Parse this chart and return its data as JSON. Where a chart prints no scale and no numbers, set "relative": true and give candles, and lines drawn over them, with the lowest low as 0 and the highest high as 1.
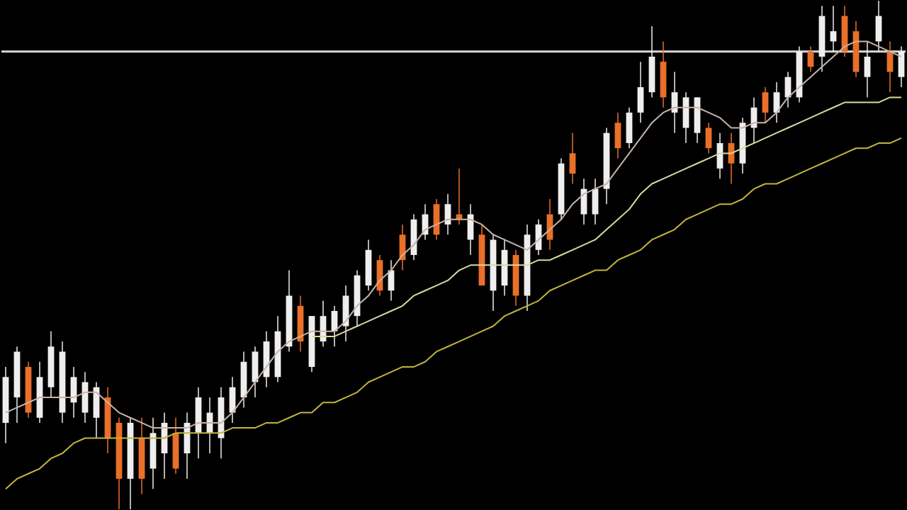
{
  "chart_data": {
    "type": "candlestick",
    "relative": true,
    "categories": [
      null,
      null,
      null,
      null,
      null,
      null,
      null,
      null,
      null,
      null,
      null,
      null,
      null,
      null,
      null,
      null,
      null,
      null,
      null,
      null,
      null,
      null,
      null,
      null,
      null,
      null,
      null,
      null,
      null,
      null,
      null,
      null,
      null,
      null,
      null,
      null,
      null,
      null,
      null,
      null,
      null,
      null,
      null,
      null,
      null,
      null,
      null,
      null,
      null,
      null,
      null,
      null,
      null,
      null,
      null,
      null,
      null,
      null,
      null,
      null,
      null,
      null,
      null,
      null,
      null,
      null,
      null,
      null,
      null,
      null,
      null,
      null,
      null,
      null,
      null,
      null,
      null,
      null,
      null,
      null
    ],
    "ohlc": [
      [
        0.17,
        0.28,
        0.13,
        0.26
      ],
      [
        0.22,
        0.32,
        0.17,
        0.31
      ],
      [
        0.28,
        0.29,
        0.18,
        0.19
      ],
      [
        0.18,
        0.29,
        0.17,
        0.26
      ],
      [
        0.24,
        0.35,
        0.22,
        0.32
      ],
      [
        0.19,
        0.33,
        0.17,
        0.31
      ],
      [
        0.21,
        0.28,
        0.18,
        0.26
      ],
      [
        0.19,
        0.27,
        0.17,
        0.25
      ],
      [
        0.18,
        0.25,
        0.14,
        0.24
      ],
      [
        0.22,
        0.24,
        0.11,
        0.14
      ],
      [
        0.17,
        0.18,
        0,
        0.06
      ],
      [
        0.06,
        0.18,
        0,
        0.17
      ],
      [
        0.14,
        0.18,
        0.03,
        0.06
      ],
      [
        0.08,
        0.18,
        0.04,
        0.15
      ],
      [
        0.11,
        0.19,
        0.06,
        0.17
      ],
      [
        0.15,
        0.18,
        0.07,
        0.08
      ],
      [
        0.11,
        0.19,
        0.06,
        0.17
      ],
      [
        0.15,
        0.24,
        0.1,
        0.22
      ],
      [
        0.15,
        0.22,
        0.11,
        0.19
      ],
      [
        0.14,
        0.24,
        0.1,
        0.22
      ],
      [
        0.19,
        0.26,
        0.17,
        0.24
      ],
      [
        0.22,
        0.31,
        0.2,
        0.29
      ],
      [
        0.25,
        0.32,
        0.22,
        0.31
      ],
      [
        0.26,
        0.35,
        0.24,
        0.33
      ],
      [
        0.26,
        0.38,
        0.25,
        0.35
      ],
      [
        0.32,
        0.47,
        0.31,
        0.42
      ],
      [
        0.4,
        0.42,
        0.31,
        0.33
      ],
      [
        0.28,
        0.38,
        0.27,
        0.38
      ],
      [
        0.33,
        0.41,
        0.32,
        0.38
      ],
      [
        0.35,
        0.4,
        0.32,
        0.39
      ],
      [
        0.36,
        0.44,
        0.33,
        0.42
      ],
      [
        0.38,
        0.47,
        0.36,
        0.46
      ],
      [
        0.44,
        0.53,
        0.43,
        0.51
      ],
      [
        0.49,
        0.5,
        0.42,
        0.43
      ],
      [
        0.43,
        0.49,
        0.41,
        0.47
      ],
      [
        0.54,
        0.56,
        0.47,
        0.49
      ],
      [
        0.5,
        0.58,
        0.49,
        0.57
      ],
      [
        0.54,
        0.6,
        0.53,
        0.58
      ],
      [
        0.6,
        0.61,
        0.53,
        0.54
      ],
      [
        0.56,
        0.62,
        0.54,
        0.6
      ],
      [
        0.58,
        0.67,
        0.56,
        0.57
      ],
      [
        0.53,
        0.6,
        0.5,
        0.58
      ],
      [
        0.54,
        0.56,
        0.44,
        0.44
      ],
      [
        0.43,
        0.54,
        0.39,
        0.53
      ],
      [
        0.44,
        0.53,
        0.42,
        0.51
      ],
      [
        0.5,
        0.51,
        0.4,
        0.42
      ],
      [
        0.42,
        0.56,
        0.39,
        0.54
      ],
      [
        0.51,
        0.57,
        0.5,
        0.56
      ],
      [
        0.58,
        0.61,
        0.51,
        0.53
      ],
      [
        0.58,
        0.69,
        0.57,
        0.68
      ],
      [
        0.7,
        0.74,
        0.64,
        0.66
      ],
      [
        0.58,
        0.65,
        0.56,
        0.63
      ],
      [
        0.58,
        0.65,
        0.56,
        0.63
      ],
      [
        0.63,
        0.75,
        0.6,
        0.74
      ],
      [
        0.76,
        0.78,
        0.69,
        0.71
      ],
      [
        0.72,
        0.79,
        0.71,
        0.78
      ],
      [
        0.78,
        0.88,
        0.76,
        0.83
      ],
      [
        0.82,
        0.95,
        0.81,
        0.89
      ],
      [
        0.88,
        0.92,
        0.79,
        0.81
      ],
      [
        0.78,
        0.86,
        0.74,
        0.82
      ],
      [
        0.75,
        0.82,
        0.72,
        0.81
      ],
      [
        0.74,
        0.81,
        0.72,
        0.81
      ],
      [
        0.75,
        0.76,
        0.7,
        0.71
      ],
      [
        0.67,
        0.74,
        0.65,
        0.72
      ],
      [
        0.72,
        0.74,
        0.64,
        0.68
      ],
      [
        0.68,
        0.77,
        0.66,
        0.76
      ],
      [
        0.75,
        0.81,
        0.72,
        0.79
      ],
      [
        0.82,
        0.83,
        0.76,
        0.78
      ],
      [
        0.78,
        0.84,
        0.76,
        0.82
      ],
      [
        0.81,
        0.86,
        0.79,
        0.85
      ],
      [
        0.81,
        0.91,
        0.8,
        0.9
      ],
      [
        0.9,
        0.91,
        0.86,
        0.87
      ],
      [
        0.89,
        0.99,
        0.86,
        0.97
      ],
      [
        0.92,
        0.99,
        0.9,
        0.94
      ],
      [
        0.97,
        0.99,
        0.89,
        0.9
      ],
      [
        0.94,
        0.96,
        0.85,
        0.86
      ],
      [
        0.85,
        0.92,
        0.81,
        0.89
      ],
      [
        0.92,
        1,
        0.9,
        0.97
      ],
      [
        0.9,
        0.92,
        0.82,
        0.86
      ],
      [
        0.85,
        0.91,
        0.83,
        0.9
      ]
    ],
    "colors": [
      "#eeeeee",
      "#eeeeee",
      "#e8702a",
      "#eeeeee",
      "#eeeeee",
      "#eeeeee",
      "#eeeeee",
      "#eeeeee",
      "#eeeeee",
      "#e8702a",
      "#e8702a",
      "#eeeeee",
      "#e8702a",
      "#eeeeee",
      "#eeeeee",
      "#e8702a",
      "#eeeeee",
      "#eeeeee",
      "#eeeeee",
      "#eeeeee",
      "#eeeeee",
      "#eeeeee",
      "#eeeeee",
      "#eeeeee",
      "#eeeeee",
      "#eeeeee",
      "#e8702a",
      "#eeeeee",
      "#eeeeee",
      "#eeeeee",
      "#eeeeee",
      "#eeeeee",
      "#eeeeee",
      "#e8702a",
      "#eeeeee",
      "#e8702a",
      "#eeeeee",
      "#eeeeee",
      "#e8702a",
      "#eeeeee",
      "#e8702a",
      "#eeeeee",
      "#e8702a",
      "#eeeeee",
      "#eeeeee",
      "#e8702a",
      "#eeeeee",
      "#eeeeee",
      "#e8702a",
      "#eeeeee",
      "#e8702a",
      "#eeeeee",
      "#eeeeee",
      "#eeeeee",
      "#e8702a",
      "#eeeeee",
      "#eeeeee",
      "#eeeeee",
      "#e8702a",
      "#eeeeee",
      "#eeeeee",
      "#eeeeee",
      "#e8702a",
      "#eeeeee",
      "#e8702a",
      "#eeeeee",
      "#eeeeee",
      "#e8702a",
      "#eeeeee",
      "#eeeeee",
      "#eeeeee",
      "#e8702a",
      "#eeeeee",
      "#eeeeee",
      "#e8702a",
      "#e8702a",
      "#eeeeee",
      "#eeeeee",
      "#e8702a",
      "#eeeeee"
    ],
    "series": [
      {
        "type": "line",
        "color": "#c8b4a8",
        "values": [
          0.19,
          0.2,
          0.21,
          0.22,
          0.22,
          0.22,
          0.22,
          0.23,
          0.23,
          0.21,
          0.19,
          0.18,
          0.17,
          0.16,
          0.16,
          0.16,
          0.16,
          0.17,
          0.17,
          0.17,
          0.19,
          0.22,
          0.25,
          0.28,
          0.31,
          0.33,
          0.34,
          0.35,
          0.35,
          0.35,
          0.37,
          0.4,
          0.42,
          0.45,
          0.47,
          0.5,
          0.52,
          0.55,
          0.56,
          0.57,
          0.57,
          0.57,
          0.56,
          0.54,
          0.53,
          0.52,
          0.51,
          0.53,
          0.55,
          0.57,
          0.6,
          0.62,
          0.63,
          0.64,
          0.67,
          0.7,
          0.73,
          0.76,
          0.78,
          0.79,
          0.79,
          0.79,
          0.78,
          0.77,
          0.75,
          0.75,
          0.76,
          0.76,
          0.78,
          0.81,
          0.83,
          0.85,
          0.87,
          0.89,
          0.91,
          0.92,
          0.92,
          0.91,
          0.9,
          0.89
        ]
      },
      {
        "type": "line",
        "color": "#dcd9a0",
        "values": [
          null,
          null,
          null,
          null,
          null,
          null,
          null,
          null,
          null,
          null,
          null,
          null,
          null,
          null,
          null,
          null,
          null,
          null,
          null,
          null,
          null,
          null,
          null,
          null,
          null,
          null,
          null,
          0.34,
          0.34,
          0.34,
          0.35,
          0.36,
          0.37,
          0.38,
          0.39,
          0.4,
          0.42,
          0.43,
          0.44,
          0.45,
          0.47,
          0.48,
          0.48,
          0.48,
          0.48,
          0.48,
          0.48,
          0.49,
          0.49,
          0.5,
          0.51,
          0.52,
          0.53,
          0.55,
          0.57,
          0.59,
          0.62,
          0.64,
          0.65,
          0.66,
          0.67,
          0.68,
          0.69,
          0.7,
          0.7,
          0.71,
          0.72,
          0.73,
          0.74,
          0.75,
          0.76,
          0.77,
          0.78,
          0.79,
          0.8,
          0.8,
          0.8,
          0.8,
          0.81,
          0.81
        ]
      },
      {
        "type": "line",
        "color": "#c4b43c",
        "values": [
          0.04,
          0.06,
          0.07,
          0.08,
          0.1,
          0.11,
          0.13,
          0.14,
          0.14,
          0.14,
          0.14,
          0.14,
          0.14,
          0.14,
          0.14,
          0.15,
          0.15,
          0.15,
          0.15,
          0.15,
          0.16,
          0.16,
          0.16,
          0.17,
          0.17,
          0.18,
          0.19,
          0.19,
          0.21,
          0.21,
          0.22,
          0.23,
          0.25,
          0.26,
          0.27,
          0.28,
          0.28,
          0.29,
          0.31,
          0.32,
          0.33,
          0.34,
          0.35,
          0.36,
          0.38,
          0.39,
          0.4,
          0.41,
          0.43,
          0.44,
          0.45,
          0.46,
          0.47,
          0.47,
          0.49,
          0.5,
          0.51,
          0.53,
          0.54,
          0.55,
          0.57,
          0.58,
          0.59,
          0.6,
          0.6,
          0.61,
          0.63,
          0.64,
          0.64,
          0.65,
          0.66,
          0.67,
          0.68,
          0.69,
          0.7,
          0.71,
          0.71,
          0.72,
          0.72,
          0.73
        ]
      }
    ],
    "ref_lines": [
      {
        "axis": "y",
        "value": 0.9,
        "color": "#d8d8d8"
      }
    ]
  }
}
